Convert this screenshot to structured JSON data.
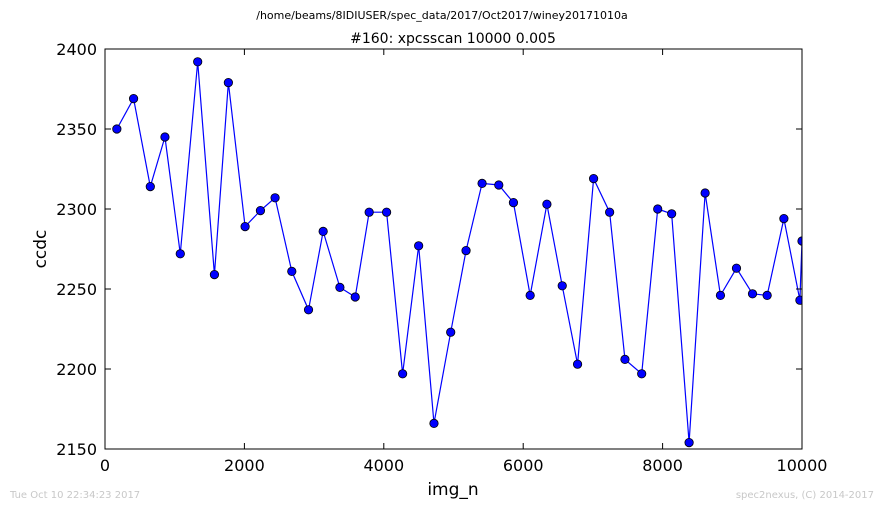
{
  "suptitle": "/home/beams/8IDIUSER/spec_data/2017/Oct2017/winey20171010a",
  "footer_left": "Tue Oct 10 22:34:23 2017",
  "footer_right": "spec2nexus, (C) 2014-2017",
  "chart_data": {
    "type": "line",
    "title": "#160: xpcsscan 10000 0.005",
    "xlabel": "img_n",
    "ylabel": "ccdc",
    "xlim": [
      0,
      10000
    ],
    "ylim": [
      2150,
      2400
    ],
    "xticks": [
      0,
      2000,
      4000,
      6000,
      8000,
      10000
    ],
    "yticks": [
      2150,
      2200,
      2250,
      2300,
      2350,
      2400
    ],
    "line_color": "#0000ff",
    "marker_color": "#0000ff",
    "grid": false,
    "series": [
      {
        "x": [
          170,
          410,
          650,
          860,
          1080,
          1330,
          1570,
          1770,
          2010,
          2230,
          2440,
          2680,
          2920,
          3130,
          3370,
          3590,
          3790,
          4040,
          4270,
          4500,
          4720,
          4960,
          5180,
          5410,
          5650,
          5860,
          6100,
          6340,
          6560,
          6780,
          7010,
          7240,
          7460,
          7700,
          7930,
          8130,
          8380,
          8610,
          8830,
          9060,
          9290,
          9500,
          9740,
          9970,
          10000
        ],
        "y": [
          2350,
          2369,
          2314,
          2345,
          2272,
          2392,
          2259,
          2379,
          2289,
          2299,
          2307,
          2261,
          2237,
          2286,
          2251,
          2245,
          2298,
          2298,
          2197,
          2277,
          2166,
          2223,
          2274,
          2316,
          2315,
          2304,
          2246,
          2303,
          2252,
          2203,
          2319,
          2298,
          2206,
          2197,
          2300,
          2297,
          2154,
          2310,
          2246,
          2263,
          2247,
          2246,
          2294,
          2243,
          2280
        ]
      }
    ]
  }
}
